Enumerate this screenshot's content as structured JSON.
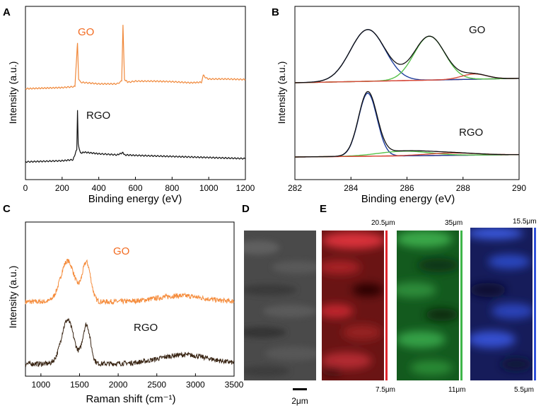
{
  "panels": {
    "A": {
      "letter": "A",
      "chart_data": {
        "type": "line",
        "title": "",
        "xlabel": "Binding energy (eV)",
        "ylabel": "Intensity (a.u.)",
        "xlim": [
          0,
          1200
        ],
        "xticks": [
          "0",
          "200",
          "400",
          "600",
          "800",
          "1000",
          "1200"
        ],
        "yticks": [],
        "series": [
          {
            "name": "GO",
            "color": "#f0883a",
            "x": [
              0,
              200,
              270,
              280,
              284,
              290,
              300,
              400,
              500,
              525,
              532,
              540,
              560,
              600,
              700,
              800,
              900,
              960,
              970,
              985,
              1000,
              1100,
              1200
            ],
            "y": [
              1.38,
              1.4,
              1.42,
              2.02,
              2.24,
              1.55,
              1.5,
              1.47,
              1.47,
              1.52,
              2.57,
              1.55,
              1.5,
              1.52,
              1.52,
              1.51,
              1.49,
              1.5,
              1.63,
              1.58,
              1.56,
              1.56,
              1.55
            ]
          },
          {
            "name": "RGO",
            "color": "#111111",
            "x": [
              0,
              100,
              200,
              260,
              280,
              284,
              288,
              300,
              320,
              400,
              500,
              532,
              540,
              600,
              700,
              800,
              900,
              1000,
              1100,
              1200
            ],
            "y": [
              0.02,
              0.03,
              0.04,
              0.06,
              0.25,
              0.98,
              0.35,
              0.18,
              0.2,
              0.17,
              0.15,
              0.19,
              0.15,
              0.14,
              0.13,
              0.12,
              0.11,
              0.1,
              0.09,
              0.08
            ]
          }
        ],
        "annotations": [
          "GO",
          "RGO"
        ]
      }
    },
    "B": {
      "letter": "B",
      "chart_data": {
        "type": "line",
        "title": "",
        "xlabel": "Binding energy (eV)",
        "ylabel": "Intensity (a.u.)",
        "xlim": [
          282,
          290
        ],
        "xticks": [
          "282",
          "284",
          "286",
          "288",
          "290"
        ],
        "yticks": [],
        "components": {
          "GO": {
            "baseline": [
              1.0,
              1.1
            ],
            "peaks": [
              {
                "center": 284.6,
                "height": 1.18,
                "sigma": 0.62,
                "color": "#1f3f9e"
              },
              {
                "center": 286.8,
                "height": 1.0,
                "sigma": 0.55,
                "color": "#57c24a"
              },
              {
                "center": 288.4,
                "height": 0.12,
                "sigma": 0.45,
                "color": "#d64b3a"
              }
            ],
            "envelope_color": "#111111"
          },
          "RGO": {
            "baseline": [
              0.0,
              0.05
            ],
            "peaks": [
              {
                "center": 284.6,
                "height": 1.35,
                "sigma": 0.33,
                "color": "#1f3f9e"
              },
              {
                "center": 285.9,
                "height": 0.1,
                "sigma": 0.9,
                "color": "#57c24a"
              },
              {
                "center": 287.6,
                "height": 0.05,
                "sigma": 0.9,
                "color": "#d64b3a"
              }
            ],
            "envelope_color": "#111111"
          }
        },
        "annotations": [
          "GO",
          "RGO"
        ]
      }
    },
    "C": {
      "letter": "C",
      "chart_data": {
        "type": "line",
        "title": "",
        "xlabel": "Raman shift (cm⁻¹)",
        "ylabel": "Intensity (a.u.)",
        "xlim": [
          800,
          3500
        ],
        "xticks": [
          "1000",
          "1500",
          "2000",
          "2500",
          "3000",
          "3500"
        ],
        "yticks": [],
        "series": [
          {
            "name": "GO",
            "color": "#f58c3c",
            "peaks": [
              {
                "center": 1345,
                "height": 0.82,
                "sigma": 90
              },
              {
                "center": 1590,
                "height": 0.78,
                "sigma": 55
              },
              {
                "center": 2800,
                "height": 0.12,
                "sigma": 300
              }
            ],
            "baseline": 1.25,
            "noise": 0.05
          },
          {
            "name": "RGO",
            "color": "#3a2615",
            "peaks": [
              {
                "center": 1345,
                "height": 0.88,
                "sigma": 80
              },
              {
                "center": 1590,
                "height": 0.78,
                "sigma": 50
              },
              {
                "center": 2850,
                "height": 0.18,
                "sigma": 320
              }
            ],
            "baseline": 0.0,
            "noise": 0.05
          }
        ],
        "annotations": [
          "GO",
          "RGO"
        ]
      }
    },
    "D": {
      "letter": "D",
      "scale_bar": "2μm"
    },
    "E": {
      "letter": "E",
      "maps": [
        {
          "name": "red-map",
          "top_label": "20.5μm",
          "bottom_label": "7.5μm",
          "color": "#e0232a"
        },
        {
          "name": "green-map",
          "top_label": "35μm",
          "bottom_label": "11μm",
          "color": "#3fb64a"
        },
        {
          "name": "blue-map",
          "top_label": "15.5μm",
          "bottom_label": "5.5μm",
          "color": "#2f4fd9"
        }
      ]
    }
  },
  "annotation_colors": {
    "GO": "#f26b21",
    "RGO": "#111111"
  }
}
